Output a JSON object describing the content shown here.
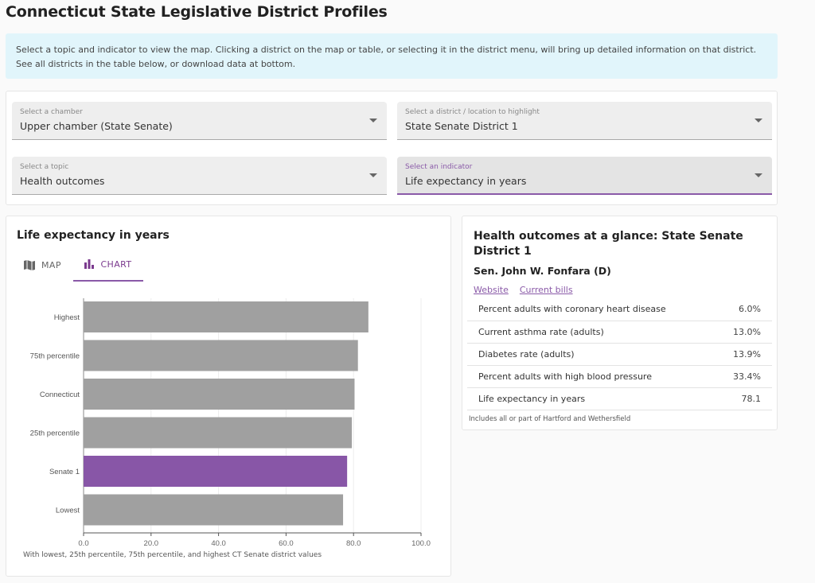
{
  "page": {
    "title": "Connecticut State Legislative District Profiles",
    "intro": "Select a topic and indicator to view the map. Clicking a district on the map or table, or selecting it in the district menu, will bring up detailed information on that district. See all districts in the table below, or download data at bottom."
  },
  "controls": {
    "chamber": {
      "label": "Select a chamber",
      "value": "Upper chamber (State Senate)"
    },
    "district": {
      "label": "Select a district / location to highlight",
      "value": "State Senate District 1"
    },
    "topic": {
      "label": "Select a topic",
      "value": "Health outcomes"
    },
    "indicator": {
      "label": "Select an indicator",
      "value": "Life expectancy in years"
    }
  },
  "chart_panel": {
    "title": "Life expectancy in years",
    "tabs": [
      {
        "label": "MAP",
        "icon": "map-icon",
        "active": false
      },
      {
        "label": "CHART",
        "icon": "bar-chart-icon",
        "active": true
      }
    ],
    "caption": "With lowest, 25th percentile, 75th percentile, and highest CT Senate district values"
  },
  "chart_data": {
    "type": "bar",
    "orientation": "horizontal",
    "title": "Life expectancy in years",
    "xlabel": "",
    "ylabel": "",
    "categories": [
      "Highest",
      "75th percentile",
      "Connecticut",
      "25th percentile",
      "Senate 1",
      "Lowest"
    ],
    "values": [
      84.4,
      81.3,
      80.3,
      79.5,
      78.1,
      76.9
    ],
    "highlight": "Senate 1",
    "colors": {
      "default": "#a0a0a0",
      "highlight": "#8856a7"
    },
    "xlim": [
      0,
      100
    ],
    "xticks": [
      "0.0",
      "20.0",
      "40.0",
      "60.0",
      "80.0",
      "100.0"
    ],
    "xtick_values": [
      0,
      20,
      40,
      60,
      80,
      100
    ],
    "grid": true
  },
  "glance": {
    "title": "Health outcomes at a glance: State Senate District 1",
    "legislator": "Sen. John W. Fonfara (D)",
    "links": [
      "Website",
      "Current bills"
    ],
    "rows": [
      {
        "label": "Percent adults with coronary heart disease",
        "value": "6.0%"
      },
      {
        "label": "Current asthma rate (adults)",
        "value": "13.0%"
      },
      {
        "label": "Diabetes rate (adults)",
        "value": "13.9%"
      },
      {
        "label": "Percent adults with high blood pressure",
        "value": "33.4%"
      },
      {
        "label": "Life expectancy in years",
        "value": "78.1"
      }
    ],
    "note": "Includes all or part of Hartford and Wethersfield"
  },
  "colors": {
    "accent": "#8a5aa8",
    "info_bg": "#e1f5fb"
  }
}
